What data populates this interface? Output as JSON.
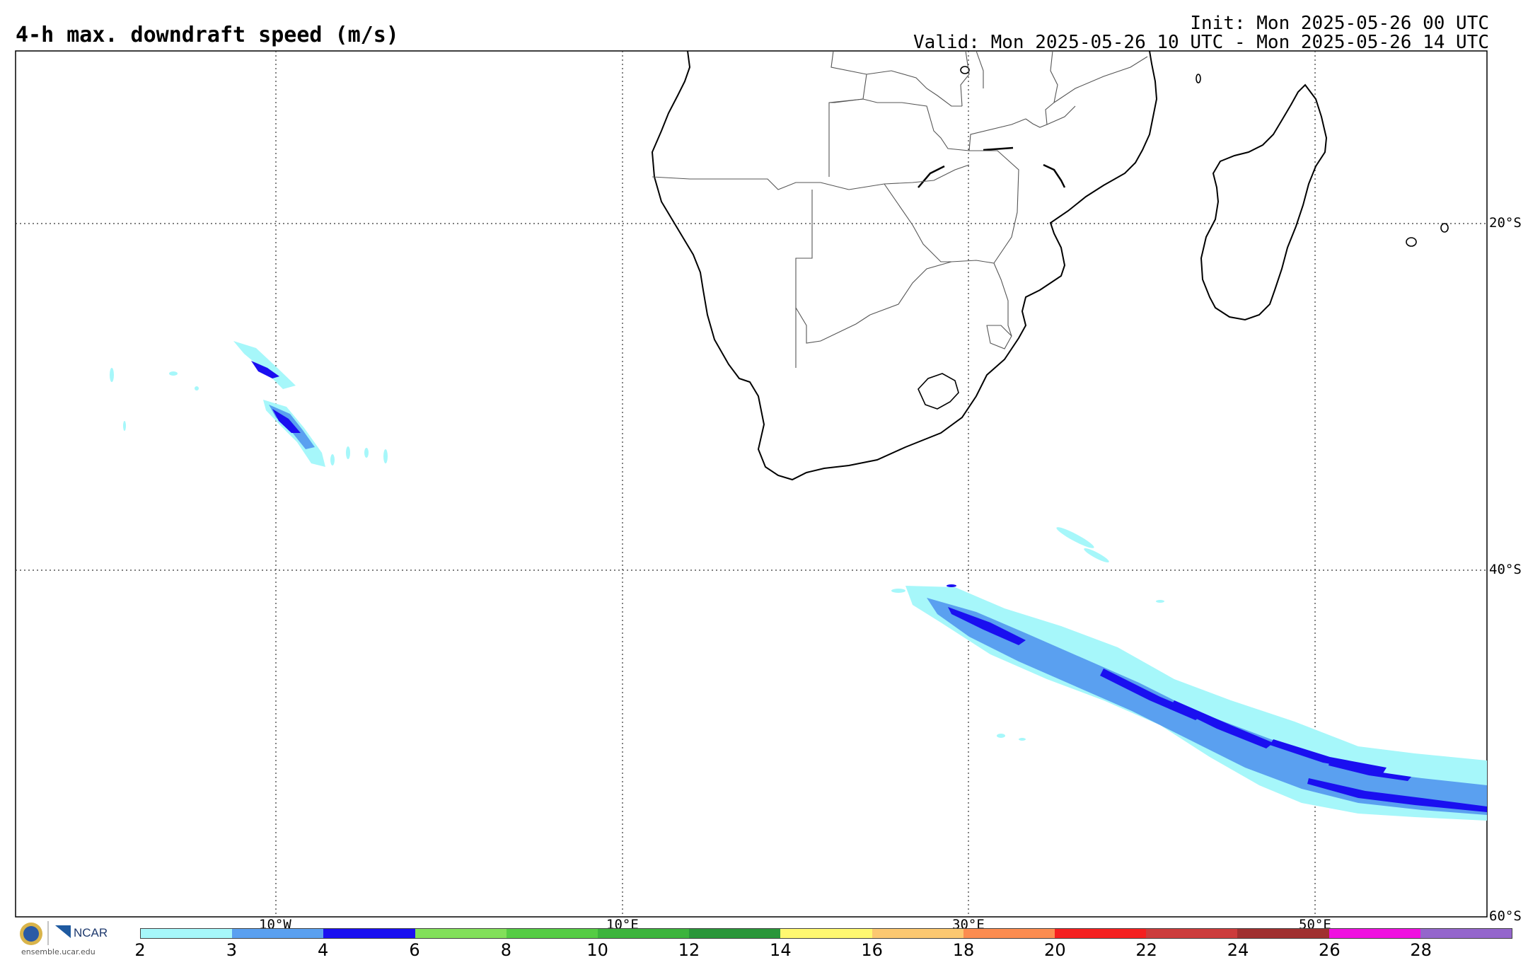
{
  "title": "4-h max. downdraft speed (m/s)",
  "init": "Init: Mon 2025-05-26 00 UTC",
  "valid": "Valid: Mon 2025-05-26 10 UTC - Mon 2025-05-26 14 UTC",
  "lat_labels": [
    "20°S",
    "40°S",
    "60°S"
  ],
  "lon_labels": [
    "10°W",
    "10°E",
    "30°E",
    "50°E"
  ],
  "colorbar": {
    "colors": [
      "#a6f7fa",
      "#5aa0f0",
      "#1a0ff0",
      "#82e05a",
      "#55cc44",
      "#3cb43c",
      "#2a963a",
      "#fff870",
      "#fcc870",
      "#fc8c50",
      "#f52020",
      "#cc3c3c",
      "#a03030",
      "#f010e0",
      "#9466cc"
    ],
    "ticks": [
      "2",
      "3",
      "4",
      "6",
      "8",
      "10",
      "12",
      "14",
      "16",
      "18",
      "20",
      "22",
      "24",
      "26",
      "28"
    ]
  },
  "logo": {
    "org": "NCAR",
    "url": "ensemble.ucar.edu"
  }
}
